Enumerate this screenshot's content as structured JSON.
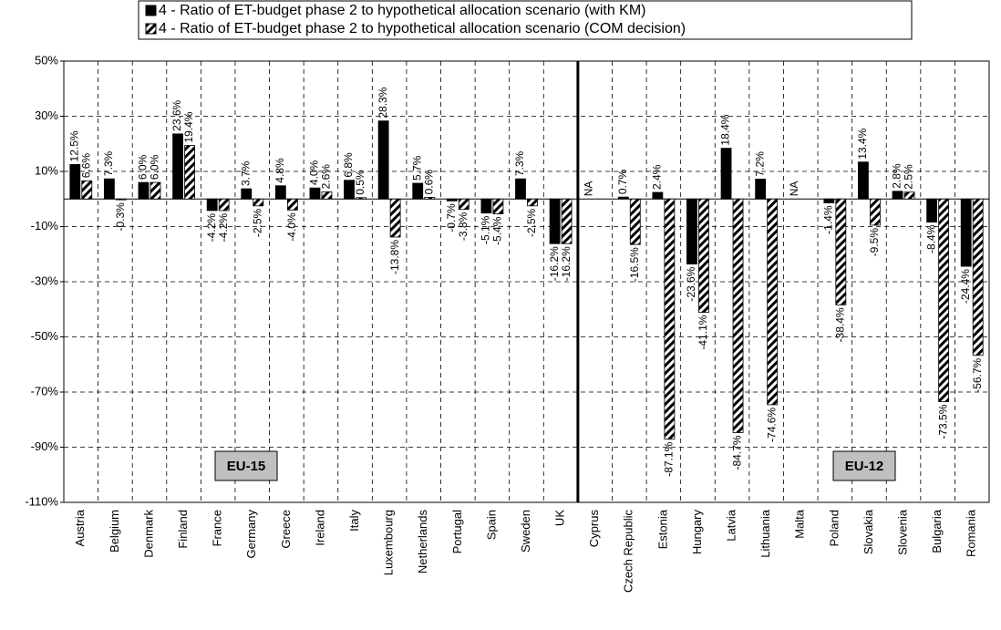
{
  "chart_data": {
    "type": "bar",
    "categories": [
      "Austria",
      "Belgium",
      "Denmark",
      "Finland",
      "France",
      "Germany",
      "Greece",
      "Ireland",
      "Italy",
      "Luxembourg",
      "Netherlands",
      "Portugal",
      "Spain",
      "Sweden",
      "UK",
      "Cyprus",
      "Czech Republic",
      "Estonia",
      "Hungary",
      "Latvia",
      "Lithuania",
      "Malta",
      "Poland",
      "Slovakia",
      "Slovenia",
      "Bulgaria",
      "Romania"
    ],
    "series": [
      {
        "name": "4 - Ratio of ET-budget phase 2 to hypothetical allocation scenario (with KM)",
        "color": "#000000",
        "pattern": "solid",
        "values": [
          12.5,
          7.3,
          6.0,
          23.6,
          -4.2,
          3.7,
          4.8,
          4.0,
          6.8,
          28.3,
          5.7,
          -0.7,
          -5.1,
          7.3,
          -16.2,
          null,
          0.7,
          2.4,
          -23.6,
          18.4,
          7.2,
          null,
          -1.4,
          13.4,
          2.8,
          -8.4,
          -24.4
        ],
        "value_labels": [
          "12.5%",
          "7.3%",
          "6.0%",
          "23.6%",
          "-4.2%",
          "3.7%",
          "4.8%",
          "4.0%",
          "6.8%",
          "28.3%",
          "5.7%",
          "-0.7%",
          "-5.1%",
          "7.3%",
          "-16.2%",
          "NA",
          "0.7%",
          "2.4%",
          "-23.6%",
          "18.4%",
          "7.2%",
          "NA",
          "-1.4%",
          "13.4%",
          "2.8%",
          "-8.4%",
          "-24.4%"
        ]
      },
      {
        "name": "4 - Ratio of ET-budget phase 2 to hypothetical allocation scenario (COM decision)",
        "color": "#000000",
        "pattern": "hatched",
        "values": [
          6.6,
          -0.3,
          6.0,
          19.4,
          -4.2,
          -2.5,
          -4.0,
          2.6,
          0.5,
          -13.8,
          0.6,
          -3.8,
          -5.4,
          -2.5,
          -16.2,
          null,
          -16.5,
          -87.1,
          -41.1,
          -84.7,
          -74.6,
          null,
          -38.4,
          -9.5,
          2.5,
          -73.5,
          -56.7
        ],
        "value_labels": [
          "6.6%",
          "-0.3%",
          "6.0%",
          "19.4%",
          "-4.2%",
          "-2.5%",
          "-4.0%",
          "2.6%",
          "0.5%",
          "-13.8%",
          "0.6%",
          "-3.8%",
          "-5.4%",
          "-2.5%",
          "-16.2%",
          null,
          "-16.5%",
          "-87.1%",
          "-41.1%",
          "-84.7%",
          "-74.6%",
          null,
          "-38.4%",
          "-9.5%",
          "2.5%",
          "-73.5%",
          "-56.7%"
        ]
      }
    ],
    "ylim": [
      -110,
      50
    ],
    "yticks": [
      {
        "value": -110,
        "label": "-110%"
      },
      {
        "value": -90,
        "label": "-90%"
      },
      {
        "value": -70,
        "label": "-70%"
      },
      {
        "value": -50,
        "label": "-50%"
      },
      {
        "value": -30,
        "label": "-30%"
      },
      {
        "value": -10,
        "label": "-10%"
      },
      {
        "value": 10,
        "label": "10%"
      },
      {
        "value": 30,
        "label": "30%"
      },
      {
        "value": 50,
        "label": "50%"
      }
    ],
    "grid": true,
    "annotations": [
      "EU-15",
      "EU-12"
    ]
  }
}
